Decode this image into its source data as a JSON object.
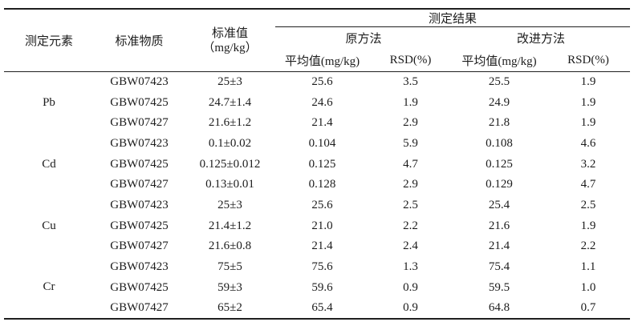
{
  "table": {
    "header": {
      "col_element": "测定元素",
      "col_material": "标准物质",
      "col_standard_line1": "标准值",
      "col_standard_line2": "（mg/kg）",
      "group_results": "测定结果",
      "group_original": "原方法",
      "group_improved": "改进方法",
      "col_mean": "平均值(mg/kg)",
      "col_rsd": "RSD(%)"
    },
    "groups": [
      {
        "element": "Pb",
        "rows": [
          {
            "material": "GBW07423",
            "standard": "25±3",
            "orig_mean": "25.6",
            "orig_rsd": "3.5",
            "impr_mean": "25.5",
            "impr_rsd": "1.9"
          },
          {
            "material": "GBW07425",
            "standard": "24.7±1.4",
            "orig_mean": "24.6",
            "orig_rsd": "1.9",
            "impr_mean": "24.9",
            "impr_rsd": "1.9"
          },
          {
            "material": "GBW07427",
            "standard": "21.6±1.2",
            "orig_mean": "21.4",
            "orig_rsd": "2.9",
            "impr_mean": "21.8",
            "impr_rsd": "1.9"
          }
        ]
      },
      {
        "element": "Cd",
        "rows": [
          {
            "material": "GBW07423",
            "standard": "0.1±0.02",
            "orig_mean": "0.104",
            "orig_rsd": "5.9",
            "impr_mean": "0.108",
            "impr_rsd": "4.6"
          },
          {
            "material": "GBW07425",
            "standard": "0.125±0.012",
            "orig_mean": "0.125",
            "orig_rsd": "4.7",
            "impr_mean": "0.125",
            "impr_rsd": "3.2"
          },
          {
            "material": "GBW07427",
            "standard": "0.13±0.01",
            "orig_mean": "0.128",
            "orig_rsd": "2.9",
            "impr_mean": "0.129",
            "impr_rsd": "4.7"
          }
        ]
      },
      {
        "element": "Cu",
        "rows": [
          {
            "material": "GBW07423",
            "standard": "25±3",
            "orig_mean": "25.6",
            "orig_rsd": "2.5",
            "impr_mean": "25.4",
            "impr_rsd": "2.5"
          },
          {
            "material": "GBW07425",
            "standard": "21.4±1.2",
            "orig_mean": "21.0",
            "orig_rsd": "2.2",
            "impr_mean": "21.6",
            "impr_rsd": "1.9"
          },
          {
            "material": "GBW07427",
            "standard": "21.6±0.8",
            "orig_mean": "21.4",
            "orig_rsd": "2.4",
            "impr_mean": "21.4",
            "impr_rsd": "2.2"
          }
        ]
      },
      {
        "element": "Cr",
        "rows": [
          {
            "material": "GBW07423",
            "standard": "75±5",
            "orig_mean": "75.6",
            "orig_rsd": "1.3",
            "impr_mean": "75.4",
            "impr_rsd": "1.1"
          },
          {
            "material": "GBW07425",
            "standard": "59±3",
            "orig_mean": "59.6",
            "orig_rsd": "0.9",
            "impr_mean": "59.5",
            "impr_rsd": "1.0"
          },
          {
            "material": "GBW07427",
            "standard": "65±2",
            "orig_mean": "65.4",
            "orig_rsd": "0.9",
            "impr_mean": "64.8",
            "impr_rsd": "0.7"
          }
        ]
      }
    ]
  },
  "colors": {
    "text": "#1c1c1c",
    "rule": "#1f1f1f",
    "background": "#ffffff"
  }
}
